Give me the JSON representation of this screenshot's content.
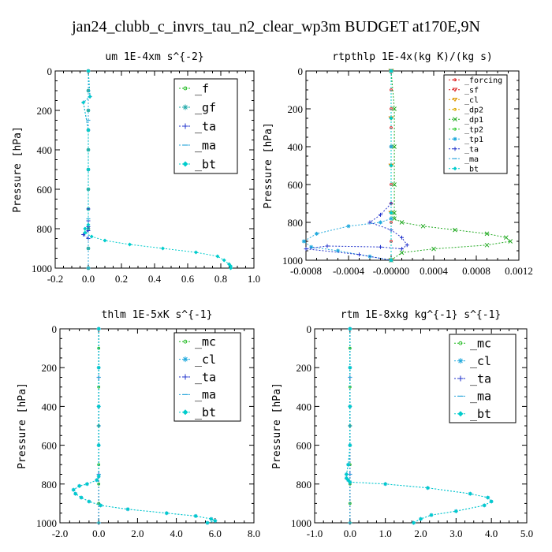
{
  "title": "jan24_clubb_c_invrs_tau_n2_clear_wp3m  BUDGET at170E,9N",
  "chart_data": [
    {
      "type": "line",
      "title": "um  1E-4xm s^{-2}",
      "ylabel": "Pressure [hPa]",
      "xlim": [
        -0.2,
        1.0
      ],
      "ylim": [
        1000,
        0
      ],
      "xticks": [
        "-0.2",
        "0.0",
        "0.2",
        "0.4",
        "0.6",
        "0.8",
        "1.0"
      ],
      "yticks": [
        "0",
        "200",
        "400",
        "600",
        "800",
        "1000"
      ],
      "series": [
        {
          "name": "_f",
          "color": "#22bb22",
          "marker": "circle",
          "x": [
            0.0,
            0.0,
            0.0,
            0.0,
            0.0,
            0.0,
            0.0,
            0.0,
            0.0,
            0.0,
            0.0
          ],
          "y": [
            0,
            100,
            200,
            300,
            400,
            500,
            600,
            700,
            800,
            900,
            1000
          ]
        },
        {
          "name": "_gf",
          "color": "#22aaaa",
          "marker": "star",
          "x": [
            0.0,
            0.0,
            0.0,
            0.0,
            0.0,
            0.0,
            0.0,
            0.0,
            0.0,
            0.0,
            0.0
          ],
          "y": [
            0,
            100,
            200,
            300,
            400,
            500,
            600,
            700,
            800,
            900,
            1000
          ]
        },
        {
          "name": "_ta",
          "color": "#2233cc",
          "marker": "plus",
          "x": [
            0.0,
            0.01,
            -0.03,
            0.0,
            0.0,
            0.0,
            0.0,
            0.0,
            0.0,
            -0.03,
            0.0
          ],
          "y": [
            0,
            130,
            160,
            300,
            500,
            700,
            760,
            790,
            810,
            830,
            850
          ]
        },
        {
          "name": "_ma",
          "color": "#33aadd",
          "marker": "dash",
          "x": [
            0.0,
            0.0,
            0.0,
            0.0,
            0.0
          ],
          "y": [
            0,
            250,
            500,
            750,
            1000
          ]
        },
        {
          "name": "_bt",
          "color": "#00cccc",
          "marker": "diamond",
          "x": [
            0.0,
            0.01,
            -0.03,
            0.0,
            0.0,
            0.0,
            -0.02,
            -0.02,
            0.02,
            0.1,
            0.25,
            0.45,
            0.65,
            0.78,
            0.82,
            0.85,
            0.86,
            0.86
          ],
          "y": [
            0,
            130,
            160,
            300,
            500,
            780,
            800,
            820,
            840,
            860,
            880,
            900,
            920,
            940,
            960,
            980,
            990,
            1000
          ]
        }
      ]
    },
    {
      "type": "line",
      "title": "rtpthlp  1E-4x(kg K)/(kg s)",
      "ylabel": "Pressure [hPa]",
      "xlim": [
        -0.0008,
        0.0012
      ],
      "ylim": [
        1000,
        0
      ],
      "xticks": [
        "-0.0008",
        "-0.0004",
        "-0.00000",
        "0.0004",
        "0.0008",
        "0.0012"
      ],
      "yticks": [
        "0",
        "200",
        "400",
        "600",
        "800",
        "1000"
      ],
      "series": [
        {
          "name": "_forcing",
          "color": "#dd2222",
          "marker": "circle",
          "x": [
            0,
            0,
            0,
            0,
            0,
            0,
            0,
            0,
            0,
            0,
            0
          ],
          "y": [
            0,
            100,
            200,
            300,
            400,
            500,
            600,
            700,
            800,
            900,
            1000
          ]
        },
        {
          "name": "_sf",
          "color": "#dd2222",
          "marker": "tri",
          "x": [
            0,
            0,
            0,
            0,
            0
          ],
          "y": [
            0,
            250,
            500,
            750,
            1000
          ]
        },
        {
          "name": "_cl",
          "color": "#dd9900",
          "marker": "tri",
          "x": [
            0,
            0,
            0,
            0,
            0
          ],
          "y": [
            0,
            250,
            500,
            750,
            1000
          ]
        },
        {
          "name": "_dp2",
          "color": "#ddaa00",
          "marker": "circle",
          "x": [
            0,
            0,
            0,
            0,
            0
          ],
          "y": [
            0,
            250,
            500,
            750,
            1000
          ]
        },
        {
          "name": "_dp1",
          "color": "#22aa22",
          "marker": "x",
          "x": [
            0,
            3e-05,
            3e-05,
            3e-05,
            3e-05,
            3e-05,
            0.0001,
            0.0003,
            0.0006,
            0.0009,
            0.00108,
            0.00112,
            0.0009,
            0.0004,
            0.0001,
            0
          ],
          "y": [
            0,
            200,
            400,
            600,
            750,
            780,
            800,
            820,
            840,
            860,
            880,
            900,
            920,
            940,
            960,
            1000
          ]
        },
        {
          "name": "_tp2",
          "color": "#33cc33",
          "marker": "circle",
          "x": [
            0,
            0,
            0,
            0,
            0
          ],
          "y": [
            0,
            250,
            500,
            750,
            1000
          ]
        },
        {
          "name": "_tp1",
          "color": "#22aadd",
          "marker": "star",
          "x": [
            0,
            0,
            0,
            -0.0001,
            -0.0004,
            -0.0007,
            -0.00082,
            -0.00075,
            -0.0005,
            -0.0002,
            0
          ],
          "y": [
            0,
            400,
            780,
            800,
            820,
            860,
            900,
            930,
            950,
            980,
            1000
          ]
        },
        {
          "name": "_ta",
          "color": "#2233cc",
          "marker": "plus",
          "x": [
            0,
            0,
            -0.0001,
            -0.0002,
            0,
            0.0001,
            0.00015,
            0.0001,
            -0.0001,
            -0.0006,
            -0.0008,
            -0.0003,
            0
          ],
          "y": [
            0,
            700,
            760,
            800,
            840,
            880,
            920,
            940,
            930,
            925,
            940,
            970,
            1000
          ]
        },
        {
          "name": "_ma",
          "color": "#33aadd",
          "marker": "dash",
          "x": [
            0,
            0,
            0,
            0,
            0
          ],
          "y": [
            0,
            250,
            500,
            750,
            1000
          ]
        },
        {
          "name": "_bt",
          "color": "#00cccc",
          "marker": "diamond",
          "x": [
            0,
            0,
            0,
            0,
            0
          ],
          "y": [
            0,
            250,
            500,
            750,
            1000
          ]
        }
      ]
    },
    {
      "type": "line",
      "title": "thlm  1E-5xK s^{-1}",
      "ylabel": "Pressure [hPa]",
      "xlim": [
        -2.0,
        8.0
      ],
      "ylim": [
        1000,
        0
      ],
      "xticks": [
        "-2.0",
        "0.0",
        "2.0",
        "4.0",
        "6.0",
        "8.0"
      ],
      "yticks": [
        "0",
        "200",
        "400",
        "600",
        "800",
        "1000"
      ],
      "series": [
        {
          "name": "_mc",
          "color": "#22bb22",
          "marker": "circle",
          "x": [
            0,
            0,
            0,
            0,
            0,
            0,
            0,
            0,
            0,
            0,
            0
          ],
          "y": [
            0,
            100,
            200,
            300,
            400,
            500,
            600,
            700,
            800,
            900,
            1000
          ]
        },
        {
          "name": "_cl",
          "color": "#22aadd",
          "marker": "star",
          "x": [
            0,
            0,
            0,
            0,
            0,
            -0.1,
            -0.6,
            -1.0,
            -1.3,
            -1.2,
            -0.9,
            -0.5,
            0.1,
            1.5,
            3.5,
            5.0,
            5.8,
            6.0,
            5.6
          ],
          "y": [
            0,
            200,
            400,
            600,
            760,
            780,
            800,
            810,
            830,
            850,
            870,
            890,
            910,
            930,
            950,
            965,
            980,
            990,
            1000
          ]
        },
        {
          "name": "_ta",
          "color": "#2233cc",
          "marker": "plus",
          "x": [
            0,
            0,
            0,
            0,
            0
          ],
          "y": [
            0,
            250,
            500,
            750,
            1000
          ]
        },
        {
          "name": "_ma",
          "color": "#33aadd",
          "marker": "dash",
          "x": [
            0,
            0,
            0,
            0,
            0
          ],
          "y": [
            0,
            250,
            500,
            750,
            1000
          ]
        },
        {
          "name": "_bt",
          "color": "#00cccc",
          "marker": "diamond",
          "x": [
            0,
            0,
            0,
            0,
            0,
            -0.1,
            -0.6,
            -1.0,
            -1.3,
            -1.2,
            -0.9,
            -0.5,
            0.1,
            1.5,
            3.5,
            5.0,
            5.8,
            6.0,
            5.6
          ],
          "y": [
            0,
            200,
            400,
            600,
            760,
            780,
            800,
            810,
            830,
            850,
            870,
            890,
            910,
            930,
            950,
            965,
            980,
            990,
            1000
          ]
        }
      ]
    },
    {
      "type": "line",
      "title": "rtm  1E-8xkg kg^{-1} s^{-1}",
      "ylabel": "Pressure [hPa]",
      "xlim": [
        -1.0,
        5.0
      ],
      "ylim": [
        1000,
        0
      ],
      "xticks": [
        "-1.0",
        "0.0",
        "1.0",
        "2.0",
        "3.0",
        "4.0",
        "5.0"
      ],
      "yticks": [
        "0",
        "200",
        "400",
        "600",
        "800",
        "1000"
      ],
      "series": [
        {
          "name": "_mc",
          "color": "#22bb22",
          "marker": "circle",
          "x": [
            0,
            0,
            0,
            0,
            0,
            0,
            0,
            0,
            0,
            0,
            0
          ],
          "y": [
            0,
            100,
            200,
            300,
            400,
            500,
            600,
            700,
            800,
            900,
            1000
          ]
        },
        {
          "name": "_cl",
          "color": "#22aadd",
          "marker": "star",
          "x": [
            0,
            0,
            0,
            0,
            -0.05,
            -0.1,
            -0.1,
            -0.05,
            0.0,
            1.0,
            2.2,
            3.4,
            3.9,
            4.0,
            3.8,
            3.0,
            2.3,
            2.0,
            1.8
          ],
          "y": [
            0,
            200,
            400,
            600,
            700,
            750,
            770,
            780,
            790,
            800,
            820,
            850,
            870,
            890,
            910,
            940,
            960,
            980,
            1000
          ]
        },
        {
          "name": "_ta",
          "color": "#2233cc",
          "marker": "plus",
          "x": [
            0,
            0,
            0,
            0,
            0
          ],
          "y": [
            0,
            250,
            500,
            750,
            1000
          ]
        },
        {
          "name": "_ma",
          "color": "#33aadd",
          "marker": "dash",
          "x": [
            0,
            0,
            0,
            0,
            0
          ],
          "y": [
            0,
            250,
            500,
            750,
            1000
          ]
        },
        {
          "name": "_bt",
          "color": "#00cccc",
          "marker": "diamond",
          "x": [
            0,
            0,
            0,
            0,
            -0.05,
            -0.1,
            -0.1,
            -0.05,
            0.0,
            1.0,
            2.2,
            3.4,
            3.9,
            4.0,
            3.8,
            3.0,
            2.3,
            2.0,
            1.8
          ],
          "y": [
            0,
            200,
            400,
            600,
            700,
            750,
            770,
            780,
            790,
            800,
            820,
            850,
            870,
            890,
            910,
            940,
            960,
            980,
            1000
          ]
        }
      ]
    }
  ]
}
